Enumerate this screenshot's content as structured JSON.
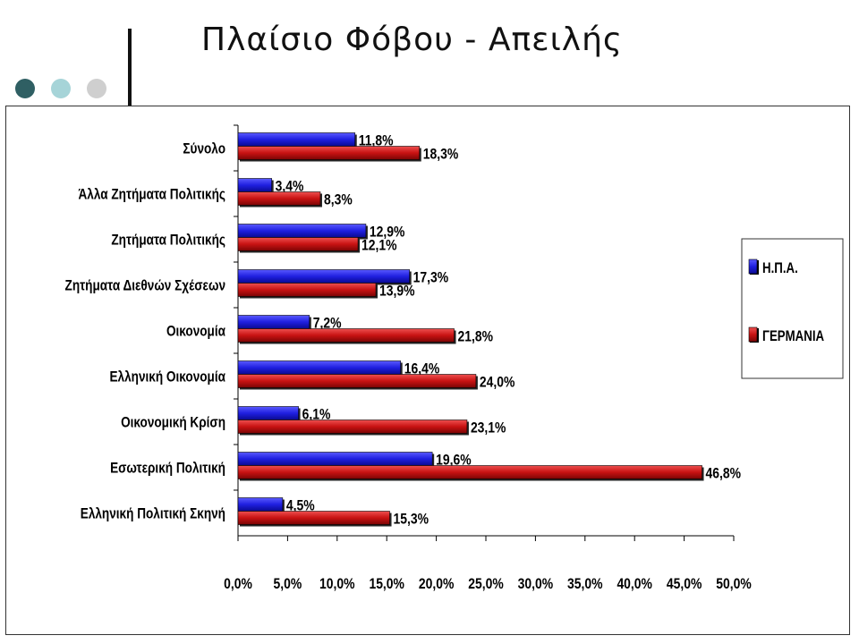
{
  "slide": {
    "title": "Πλαίσιο Φόβου - Απειλής",
    "dots": [
      "#2f5f63",
      "#a6d4d8",
      "#cfcfcf"
    ]
  },
  "chart_data": {
    "type": "bar",
    "orientation": "horizontal",
    "categories": [
      "Σύνολο",
      "Άλλα Ζητήματα Πολιτικής",
      "Ζητήματα Πολιτικής",
      "Ζητήματα Διεθνών Σχέσεων",
      "Οικονομία",
      "Ελληνική Οικονομία",
      "Οικονομική Κρίση",
      "Εσωτερική Πολιτική",
      "Ελληνική Πολιτική Σκηνή"
    ],
    "series": [
      {
        "name": "Η.Π.Α.",
        "color": "#1f1fe0",
        "values": [
          11.8,
          3.4,
          12.9,
          17.3,
          7.2,
          16.4,
          6.1,
          19.6,
          4.5
        ],
        "labels": [
          "11,8%",
          "3,4%",
          "12,9%",
          "17,3%",
          "7,2%",
          "16,4%",
          "6,1%",
          "19,6%",
          "4,5%"
        ]
      },
      {
        "name": "ΓΕΡΜΑΝΙΑ",
        "color": "#cc1111",
        "values": [
          18.3,
          8.3,
          12.1,
          13.9,
          21.8,
          24.0,
          23.1,
          46.8,
          15.3
        ],
        "labels": [
          "18,3%",
          "8,3%",
          "12,1%",
          "13,9%",
          "21,8%",
          "24,0%",
          "23,1%",
          "46,8%",
          "15,3%"
        ]
      }
    ],
    "xlim": [
      0,
      50
    ],
    "x_ticks": [
      0,
      5,
      10,
      15,
      20,
      25,
      30,
      35,
      40,
      45,
      50
    ],
    "x_tick_labels": [
      "0,0%",
      "5,0%",
      "10,0%",
      "15,0%",
      "20,0%",
      "25,0%",
      "30,0%",
      "35,0%",
      "40,0%",
      "45,0%",
      "50,0%"
    ],
    "legend": "right",
    "grid": false
  }
}
